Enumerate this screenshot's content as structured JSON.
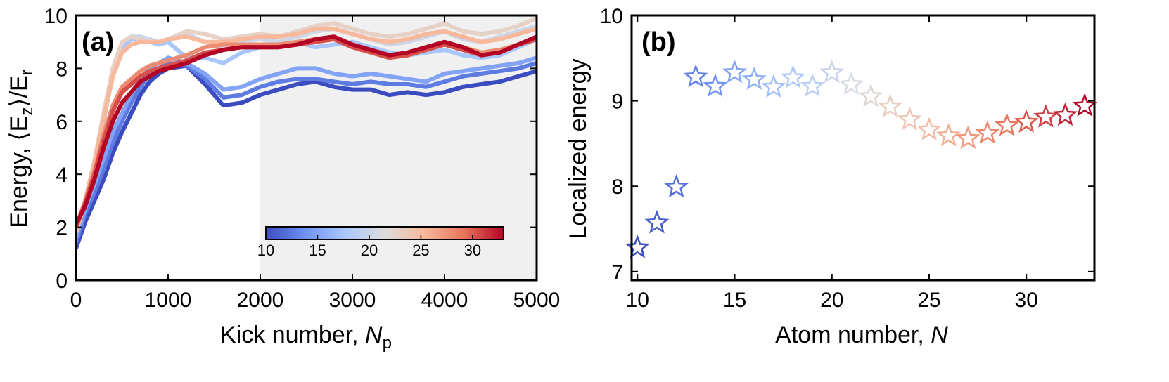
{
  "chart_data": [
    {
      "type": "line",
      "panel_label": "(a)",
      "xlabel": "Kick number, ",
      "xlabel_sub": "N",
      "xlabel_subscript": "p",
      "ylabel": "Energy, ⟨E",
      "ylabel_sub": "z",
      "ylabel_mid": "⟩/E",
      "ylabel_end": "r",
      "xlim": [
        0,
        5000
      ],
      "ylim": [
        0,
        10
      ],
      "xticks": [
        "0",
        "1000",
        "2000",
        "3000",
        "4000",
        "5000"
      ],
      "yticks": [
        "0",
        "2",
        "4",
        "6",
        "8",
        "10"
      ],
      "shaded_region": [
        2000,
        5000
      ],
      "colorbar": {
        "range": [
          10,
          33
        ],
        "ticks": [
          "10",
          "15",
          "20",
          "25",
          "30"
        ],
        "colormap": [
          "#3b4cc0",
          "#6f92f3",
          "#aac7fd",
          "#dddddd",
          "#f7b89c",
          "#e7745b",
          "#b40426"
        ]
      },
      "x": [
        0,
        100,
        200,
        300,
        400,
        500,
        600,
        700,
        800,
        900,
        1000,
        1200,
        1400,
        1600,
        1800,
        2000,
        2200,
        2400,
        2600,
        2800,
        3000,
        3200,
        3400,
        3600,
        3800,
        4000,
        4200,
        4400,
        4600,
        4800,
        5000
      ],
      "series": [
        {
          "values": [
            1.2,
            2.2,
            3.0,
            3.8,
            4.8,
            5.6,
            6.3,
            7.0,
            7.5,
            7.8,
            8.0,
            8.1,
            7.4,
            6.6,
            6.7,
            7.0,
            7.2,
            7.4,
            7.5,
            7.3,
            7.2,
            7.2,
            7.0,
            7.1,
            7.0,
            7.1,
            7.3,
            7.4,
            7.5,
            7.7,
            7.9
          ]
        },
        {
          "values": [
            1.4,
            2.5,
            3.3,
            4.2,
            5.2,
            6.0,
            6.7,
            7.3,
            7.8,
            8.0,
            8.2,
            8.1,
            7.6,
            6.9,
            7.0,
            7.3,
            7.5,
            7.6,
            7.6,
            7.5,
            7.4,
            7.5,
            7.4,
            7.4,
            7.3,
            7.5,
            7.7,
            7.8,
            7.9,
            8.0,
            8.2
          ]
        },
        {
          "values": [
            1.6,
            2.7,
            3.6,
            4.6,
            5.6,
            6.3,
            7.0,
            7.6,
            8.0,
            8.2,
            8.4,
            8.2,
            7.8,
            7.2,
            7.3,
            7.6,
            7.8,
            8.0,
            8.0,
            7.8,
            7.7,
            7.8,
            7.7,
            7.6,
            7.5,
            7.8,
            7.9,
            8.0,
            8.1,
            8.2,
            8.4
          ]
        },
        {
          "values": [
            1.8,
            3.0,
            4.3,
            6.0,
            7.8,
            8.8,
            9.1,
            9.1,
            9.0,
            8.9,
            9.0,
            8.4,
            8.4,
            8.2,
            8.6,
            8.8,
            8.9,
            9.0,
            8.8,
            8.9,
            9.0,
            8.8,
            8.6,
            8.5,
            8.6,
            8.7,
            8.5,
            8.4,
            8.5,
            8.8,
            9.1
          ]
        },
        {
          "values": [
            1.8,
            3.0,
            4.5,
            6.3,
            8.0,
            9.0,
            9.2,
            9.2,
            9.1,
            9.0,
            9.1,
            9.3,
            9.0,
            8.8,
            9.0,
            9.1,
            9.0,
            9.2,
            9.4,
            9.5,
            9.3,
            9.1,
            8.9,
            9.0,
            9.2,
            9.4,
            9.1,
            9.0,
            9.2,
            9.4,
            9.6
          ]
        },
        {
          "values": [
            1.8,
            3.0,
            4.5,
            6.3,
            8.0,
            9.0,
            9.2,
            9.1,
            9.0,
            9.0,
            9.1,
            9.4,
            9.3,
            9.1,
            9.2,
            9.3,
            9.2,
            9.4,
            9.6,
            9.7,
            9.5,
            9.3,
            9.2,
            9.3,
            9.5,
            9.7,
            9.4,
            9.3,
            9.4,
            9.6,
            9.9
          ]
        },
        {
          "values": [
            1.8,
            3.0,
            4.4,
            6.1,
            7.7,
            8.6,
            8.9,
            9.0,
            9.0,
            9.0,
            9.1,
            9.2,
            9.0,
            9.0,
            9.1,
            9.2,
            9.2,
            9.3,
            9.5,
            9.5,
            9.3,
            9.1,
            9.0,
            9.1,
            9.3,
            9.4,
            9.2,
            9.0,
            9.1,
            9.3,
            9.5
          ]
        },
        {
          "values": [
            2.0,
            3.0,
            4.1,
            5.5,
            6.6,
            7.3,
            7.6,
            7.9,
            8.1,
            8.2,
            8.3,
            8.5,
            8.8,
            8.9,
            8.9,
            8.9,
            8.9,
            9.0,
            9.1,
            9.2,
            8.9,
            8.7,
            8.5,
            8.6,
            8.8,
            9.0,
            8.8,
            8.6,
            8.7,
            8.9,
            9.1
          ]
        },
        {
          "values": [
            2.0,
            2.9,
            4.0,
            5.3,
            6.4,
            7.1,
            7.4,
            7.7,
            7.9,
            8.0,
            8.1,
            8.3,
            8.6,
            8.7,
            8.8,
            8.8,
            8.8,
            8.9,
            9.0,
            9.1,
            8.8,
            8.6,
            8.4,
            8.5,
            8.7,
            8.9,
            8.7,
            8.5,
            8.6,
            8.9,
            9.1
          ]
        },
        {
          "values": [
            2.1,
            2.8,
            3.8,
            5.0,
            6.0,
            6.7,
            7.1,
            7.5,
            7.7,
            7.9,
            8.0,
            8.2,
            8.5,
            8.7,
            8.8,
            8.8,
            8.8,
            8.9,
            9.1,
            9.2,
            8.9,
            8.7,
            8.5,
            8.6,
            8.8,
            9.0,
            8.8,
            8.5,
            8.6,
            8.9,
            9.2
          ]
        }
      ]
    },
    {
      "type": "scatter",
      "panel_label": "(b)",
      "xlabel": "Atom number, ",
      "xlabel_italic": "N",
      "ylabel": "Localized energy",
      "xlim": [
        9.7,
        33.5
      ],
      "ylim": [
        6.9,
        10.0
      ],
      "xticks": [
        10,
        15,
        20,
        25,
        30
      ],
      "yticks": [
        7,
        8,
        9,
        10
      ],
      "x": [
        10,
        11,
        12,
        13,
        14,
        15,
        16,
        17,
        18,
        19,
        20,
        21,
        22,
        23,
        24,
        25,
        26,
        27,
        28,
        29,
        30,
        31,
        32,
        33
      ],
      "y": [
        7.28,
        7.57,
        7.99,
        9.28,
        9.17,
        9.33,
        9.25,
        9.16,
        9.27,
        9.17,
        9.33,
        9.19,
        9.05,
        8.93,
        8.78,
        8.66,
        8.59,
        8.56,
        8.62,
        8.71,
        8.75,
        8.81,
        8.83,
        8.94
      ],
      "marker": "star-outline"
    }
  ]
}
